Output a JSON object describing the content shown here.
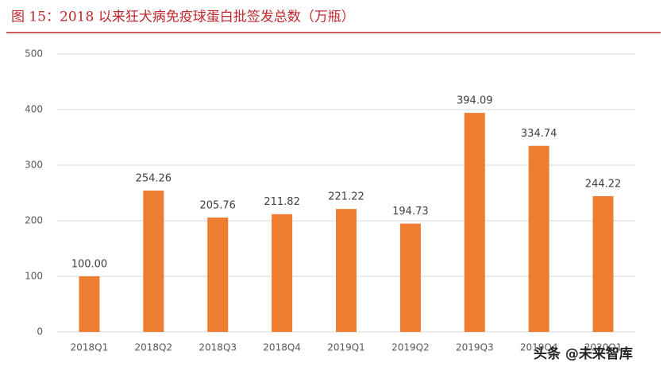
{
  "chart_data": {
    "type": "bar",
    "title": "图 15：2018 以来狂犬病免疫球蛋白批签发总数（万瓶）",
    "categories": [
      "2018Q1",
      "2018Q2",
      "2018Q3",
      "2018Q4",
      "2019Q1",
      "2019Q2",
      "2019Q3",
      "2019Q4",
      "2020Q1"
    ],
    "values": [
      100,
      254.26,
      205.76,
      211.82,
      221.22,
      194.73,
      394.09,
      334.74,
      244.22
    ],
    "value_labels": [
      "100.00",
      "254.26",
      "205.76",
      "211.82",
      "221.22",
      "194.73",
      "394.09",
      "334.74",
      "244.22"
    ],
    "color": "#ed7d31",
    "ylim": [
      0,
      500
    ],
    "yticks": [
      0,
      100,
      200,
      300,
      400,
      500
    ],
    "grid": true,
    "watermark": "头条 @未来智库"
  }
}
